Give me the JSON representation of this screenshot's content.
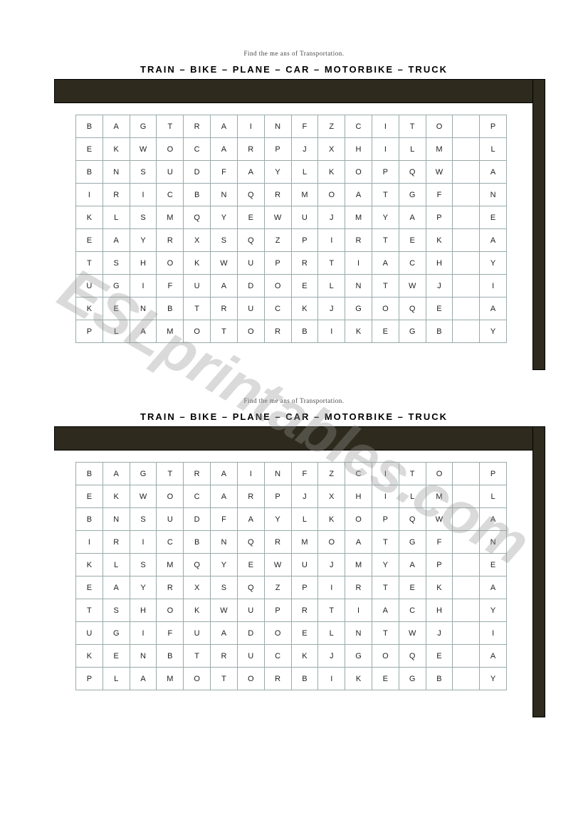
{
  "watermark_text": "ESLprintables.com",
  "watermark_color": "rgba(150,150,150,0.35)",
  "watermark_fontsize": 84,
  "puzzles": [
    {
      "instruction": "Find the me ans of Transportation.",
      "word_list_items": [
        "TRAIN",
        "BIKE",
        "PLANE",
        "CAR",
        "MOTORBIKE",
        "TRUCK"
      ],
      "word_list_separator": " – ",
      "grid": {
        "rows": 10,
        "cols": 16,
        "cells": [
          [
            "B",
            "A",
            "G",
            "T",
            "R",
            "A",
            "I",
            "N",
            "F",
            "Z",
            "C",
            "I",
            "T",
            "O",
            "",
            "P"
          ],
          [
            "E",
            "K",
            "W",
            "O",
            "C",
            "A",
            "R",
            "P",
            "J",
            "X",
            "H",
            "I",
            "L",
            "M",
            "",
            "L"
          ],
          [
            "B",
            "N",
            "S",
            "U",
            "D",
            "F",
            "A",
            "Y",
            "L",
            "K",
            "O",
            "P",
            "Q",
            "W",
            "",
            "A"
          ],
          [
            "I",
            "R",
            "I",
            "C",
            "B",
            "N",
            "Q",
            "R",
            "M",
            "O",
            "A",
            "T",
            "G",
            "F",
            "",
            "N"
          ],
          [
            "K",
            "L",
            "S",
            "M",
            "Q",
            "Y",
            "E",
            "W",
            "U",
            "J",
            "M",
            "Y",
            "A",
            "P",
            "",
            "E"
          ],
          [
            "E",
            "A",
            "Y",
            "R",
            "X",
            "S",
            "Q",
            "Z",
            "P",
            "I",
            "R",
            "T",
            "E",
            "K",
            "",
            "A"
          ],
          [
            "T",
            "S",
            "H",
            "O",
            "K",
            "W",
            "U",
            "P",
            "R",
            "T",
            "I",
            "A",
            "C",
            "H",
            "",
            "Y"
          ],
          [
            "U",
            "G",
            "I",
            "F",
            "U",
            "A",
            "D",
            "O",
            "E",
            "L",
            "N",
            "T",
            "W",
            "J",
            "",
            "I"
          ],
          [
            "K",
            "E",
            "N",
            "B",
            "T",
            "R",
            "U",
            "C",
            "K",
            "J",
            "G",
            "O",
            "Q",
            "E",
            "",
            "A"
          ],
          [
            "P",
            "L",
            "A",
            "M",
            "O",
            "T",
            "O",
            "R",
            "B",
            "I",
            "K",
            "E",
            "G",
            "B",
            "",
            "Y"
          ]
        ],
        "cell_border_color": "#9aa",
        "cell_bg": "#ffffff",
        "cell_fontsize": 11
      },
      "frame_color": "#2e2a1d"
    },
    {
      "instruction": "Find the me ans of Transportation.",
      "word_list_items": [
        "TRAIN",
        "BIKE",
        "PLANE",
        "CAR",
        "MOTORBIKE",
        "TRUCK"
      ],
      "word_list_separator": " – ",
      "grid": {
        "rows": 10,
        "cols": 16,
        "cells": [
          [
            "B",
            "A",
            "G",
            "T",
            "R",
            "A",
            "I",
            "N",
            "F",
            "Z",
            "C",
            "I",
            "T",
            "O",
            "",
            "P"
          ],
          [
            "E",
            "K",
            "W",
            "O",
            "C",
            "A",
            "R",
            "P",
            "J",
            "X",
            "H",
            "I",
            "L",
            "M",
            "",
            "L"
          ],
          [
            "B",
            "N",
            "S",
            "U",
            "D",
            "F",
            "A",
            "Y",
            "L",
            "K",
            "O",
            "P",
            "Q",
            "W",
            "",
            "A"
          ],
          [
            "I",
            "R",
            "I",
            "C",
            "B",
            "N",
            "Q",
            "R",
            "M",
            "O",
            "A",
            "T",
            "G",
            "F",
            "",
            "N"
          ],
          [
            "K",
            "L",
            "S",
            "M",
            "Q",
            "Y",
            "E",
            "W",
            "U",
            "J",
            "M",
            "Y",
            "A",
            "P",
            "",
            "E"
          ],
          [
            "E",
            "A",
            "Y",
            "R",
            "X",
            "S",
            "Q",
            "Z",
            "P",
            "I",
            "R",
            "T",
            "E",
            "K",
            "",
            "A"
          ],
          [
            "T",
            "S",
            "H",
            "O",
            "K",
            "W",
            "U",
            "P",
            "R",
            "T",
            "I",
            "A",
            "C",
            "H",
            "",
            "Y"
          ],
          [
            "U",
            "G",
            "I",
            "F",
            "U",
            "A",
            "D",
            "O",
            "E",
            "L",
            "N",
            "T",
            "W",
            "J",
            "",
            "I"
          ],
          [
            "K",
            "E",
            "N",
            "B",
            "T",
            "R",
            "U",
            "C",
            "K",
            "J",
            "G",
            "O",
            "Q",
            "E",
            "",
            "A"
          ],
          [
            "P",
            "L",
            "A",
            "M",
            "O",
            "T",
            "O",
            "R",
            "B",
            "I",
            "K",
            "E",
            "G",
            "B",
            "",
            "Y"
          ]
        ],
        "cell_border_color": "#9aa",
        "cell_bg": "#ffffff",
        "cell_fontsize": 11
      },
      "frame_color": "#2e2a1d"
    }
  ]
}
